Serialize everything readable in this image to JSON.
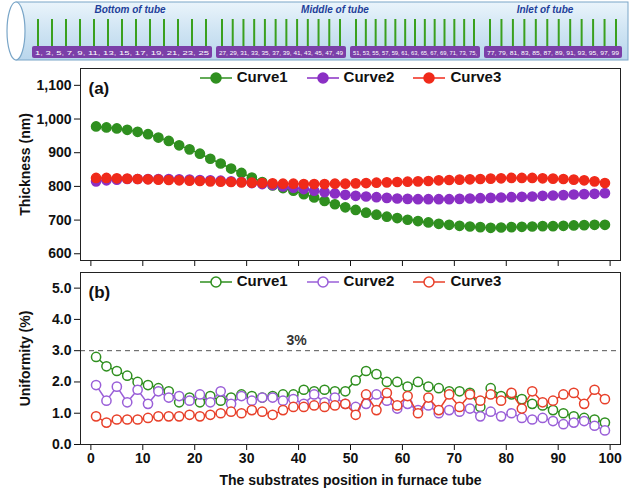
{
  "diagram": {
    "sections": [
      "Bottom of tube",
      "Middle of tube",
      "Inlet of tube"
    ],
    "slot_groups": [
      "1, 3, 5, 7, 9, 11, 13, 15, 17, 19, 21, 23, 25",
      "27, 29, 31, 33, 35, 37, 39, 41, 43, 45, 47, 49",
      "51, 53, 55, 57, 59, 61, 63, 65, 67, 69, 71, 73, 75,",
      "77, 79, 81, 83, 85, 87, 89, 91, 93, 95, 97, 99"
    ]
  },
  "chart_data": [
    {
      "type": "line",
      "panel_label": "(a)",
      "y_label": "Thickness (nm)",
      "x": [
        1,
        3,
        5,
        7,
        9,
        11,
        13,
        15,
        17,
        19,
        21,
        23,
        25,
        27,
        29,
        31,
        33,
        35,
        37,
        39,
        41,
        43,
        45,
        47,
        49,
        51,
        53,
        55,
        57,
        59,
        61,
        63,
        65,
        67,
        69,
        71,
        73,
        75,
        77,
        79,
        81,
        83,
        85,
        87,
        89,
        91,
        93,
        95,
        97,
        99
      ],
      "xlim": [
        -2,
        102
      ],
      "xticks": [
        0,
        10,
        20,
        30,
        40,
        50,
        60,
        70,
        80,
        90,
        100
      ],
      "ylim": [
        580,
        1150
      ],
      "yticks": [
        600,
        700,
        800,
        900,
        1000,
        1100
      ],
      "tick_labels": "y",
      "legend": "top",
      "series": [
        {
          "name": "Curve1",
          "color": "#2f8f1f",
          "marker": "filled_circle",
          "values": [
            978,
            975,
            972,
            968,
            962,
            955,
            945,
            935,
            922,
            910,
            897,
            882,
            868,
            853,
            840,
            826,
            813,
            803,
            795,
            787,
            777,
            767,
            757,
            747,
            738,
            730,
            722,
            716,
            710,
            706,
            701,
            697,
            693,
            689,
            686,
            683,
            681,
            679,
            677,
            678,
            679,
            680,
            681,
            682,
            682,
            683,
            684,
            685,
            686,
            686
          ]
        },
        {
          "name": "Curve2",
          "color": "#8a2fc4",
          "marker": "filled_circle",
          "values": [
            815,
            818,
            820,
            822,
            822,
            822,
            822,
            822,
            821,
            820,
            819,
            818,
            817,
            815,
            813,
            810,
            807,
            804,
            800,
            796,
            792,
            787,
            783,
            779,
            775,
            772,
            770,
            768,
            766,
            764,
            763,
            762,
            762,
            762,
            762,
            763,
            764,
            765,
            766,
            767,
            768,
            769,
            770,
            772,
            773,
            774,
            776,
            777,
            778,
            780
          ]
        },
        {
          "name": "Curve3",
          "color": "#f02a1a",
          "marker": "filled_circle",
          "values": [
            825,
            825,
            824,
            823,
            822,
            821,
            820,
            819,
            818,
            817,
            816,
            815,
            814,
            813,
            812,
            811,
            810,
            809,
            808,
            808,
            807,
            807,
            807,
            808,
            808,
            809,
            810,
            811,
            812,
            813,
            814,
            815,
            816,
            818,
            819,
            820,
            821,
            822,
            823,
            824,
            825,
            825,
            825,
            824,
            823,
            822,
            820,
            818,
            815,
            810
          ]
        }
      ]
    },
    {
      "type": "line",
      "panel_label": "(b)",
      "y_label": "Uniformity (%)",
      "x_label": "The substrates position in furnace tube",
      "x": [
        1,
        3,
        5,
        7,
        9,
        11,
        13,
        15,
        17,
        19,
        21,
        23,
        25,
        27,
        29,
        31,
        33,
        35,
        37,
        39,
        41,
        43,
        45,
        47,
        49,
        51,
        53,
        55,
        57,
        59,
        61,
        63,
        65,
        67,
        69,
        71,
        73,
        75,
        77,
        79,
        81,
        83,
        85,
        87,
        89,
        91,
        93,
        95,
        97,
        99
      ],
      "xlim": [
        -2,
        102
      ],
      "xticks": [
        0,
        10,
        20,
        30,
        40,
        50,
        60,
        70,
        80,
        90,
        100
      ],
      "ylim": [
        0,
        5.5
      ],
      "yticks": [
        0,
        1,
        2,
        3,
        4,
        5
      ],
      "legend": "top",
      "reference_line": {
        "value": 3,
        "label": "3%",
        "line_style": "dashed"
      },
      "series": [
        {
          "name": "Curve1",
          "color": "#2f8f1f",
          "marker": "open_circle",
          "values": [
            2.8,
            2.5,
            2.35,
            2.2,
            2.0,
            1.9,
            1.8,
            1.7,
            1.35,
            1.5,
            1.35,
            1.55,
            1.4,
            1.5,
            1.6,
            1.55,
            1.5,
            1.55,
            1.6,
            1.6,
            1.75,
            1.7,
            1.75,
            1.7,
            1.7,
            2.05,
            2.35,
            2.25,
            2.0,
            2.0,
            1.85,
            2.0,
            1.85,
            1.8,
            1.7,
            1.7,
            1.65,
            1.2,
            1.8,
            1.55,
            1.6,
            1.45,
            1.3,
            1.25,
            1.1,
            1.0,
            0.9,
            0.85,
            0.8,
            0.7
          ]
        },
        {
          "name": "Curve2",
          "color": "#9a5fd8",
          "marker": "open_circle",
          "values": [
            1.9,
            1.4,
            1.85,
            1.35,
            1.75,
            1.3,
            1.7,
            1.5,
            1.55,
            1.4,
            1.6,
            1.35,
            1.7,
            1.3,
            1.55,
            1.4,
            1.5,
            1.5,
            1.4,
            1.45,
            1.3,
            1.6,
            1.35,
            1.5,
            1.3,
            1.2,
            1.3,
            1.6,
            1.4,
            1.15,
            1.3,
            1.1,
            1.25,
            1.0,
            1.1,
            1.05,
            1.15,
            0.9,
            1.05,
            0.9,
            1.0,
            0.85,
            0.8,
            0.85,
            0.75,
            0.65,
            0.7,
            0.75,
            0.6,
            0.45
          ]
        },
        {
          "name": "Curve3",
          "color": "#e8402a",
          "marker": "open_circle",
          "values": [
            0.9,
            0.7,
            0.8,
            0.8,
            0.8,
            0.85,
            0.9,
            0.9,
            0.9,
            0.95,
            0.9,
            0.95,
            1.0,
            1.05,
            1.0,
            1.1,
            1.05,
            0.95,
            1.1,
            1.2,
            1.2,
            1.25,
            1.2,
            1.25,
            1.3,
            0.95,
            1.6,
            1.1,
            1.65,
            1.25,
            1.55,
            1.0,
            1.5,
            1.1,
            1.6,
            1.2,
            1.6,
            1.4,
            1.6,
            1.4,
            1.65,
            1.15,
            1.7,
            1.35,
            1.4,
            1.6,
            1.65,
            1.3,
            1.75,
            1.45
          ]
        }
      ]
    }
  ]
}
